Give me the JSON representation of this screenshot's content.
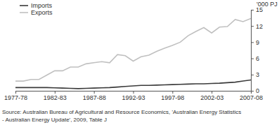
{
  "chart_data": {
    "type": "line",
    "y_label": "'000 PJ",
    "categories": [
      "1977-78",
      null,
      null,
      null,
      null,
      "1982-83",
      null,
      null,
      null,
      null,
      "1987-88",
      null,
      null,
      null,
      null,
      "1992-93",
      null,
      null,
      null,
      null,
      "1997-98",
      null,
      null,
      null,
      null,
      "2002-03",
      null,
      null,
      null,
      null,
      "2007-08"
    ],
    "series": [
      {
        "name": "Imports",
        "color": "#3a3a3a",
        "values": [
          0.6,
          0.6,
          0.6,
          0.6,
          0.6,
          0.55,
          0.5,
          0.45,
          0.4,
          0.45,
          0.5,
          0.55,
          0.6,
          0.7,
          0.8,
          0.9,
          1.0,
          1.0,
          1.05,
          1.1,
          1.15,
          1.2,
          1.25,
          1.3,
          1.3,
          1.35,
          1.4,
          1.5,
          1.6,
          1.8,
          2.0
        ]
      },
      {
        "name": "Exports",
        "color": "#c0c0c0",
        "values": [
          1.8,
          1.8,
          2.1,
          2.1,
          2.9,
          3.7,
          3.7,
          4.4,
          4.4,
          5.0,
          5.2,
          5.4,
          5.2,
          6.7,
          6.5,
          5.5,
          6.3,
          6.6,
          7.3,
          7.9,
          8.4,
          9.0,
          10.2,
          11.0,
          11.7,
          10.7,
          11.8,
          11.9,
          13.2,
          12.8,
          13.4
        ]
      }
    ],
    "ylim": [
      0,
      15
    ],
    "yticks": [
      0,
      3,
      6,
      9,
      12,
      15
    ],
    "grid": false,
    "legend": "top-left",
    "annotations": [
      "Source: Australian Bureau of Agricultural and Resource Economics, 'Australian Energy Statistics",
      "- Australian Energy Update', 2009, Table J"
    ]
  }
}
